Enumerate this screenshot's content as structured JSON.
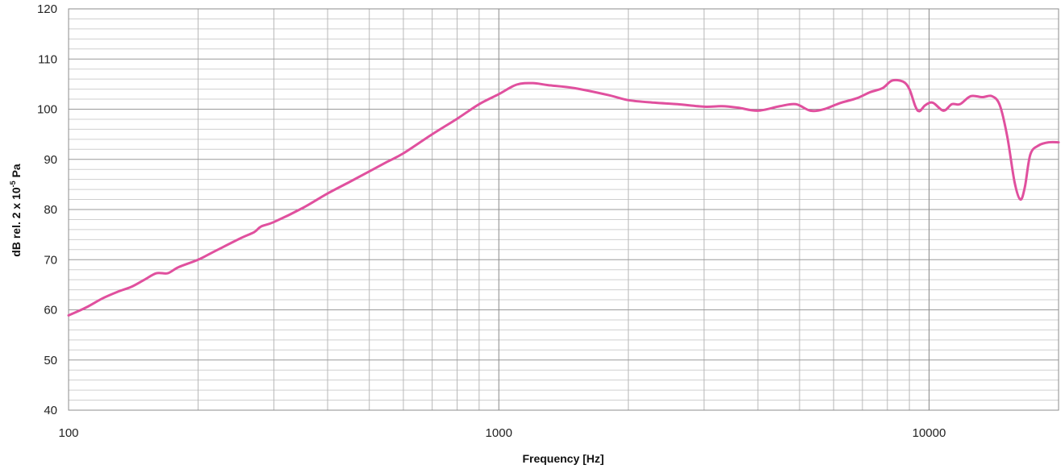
{
  "chart_data": {
    "type": "line",
    "title": "",
    "xlabel": "Frequency [Hz]",
    "ylabel_main": "dB rel. 2 x 10",
    "ylabel_sup": "-5",
    "ylabel_tail": " Pa",
    "x_scale": "log",
    "xlim": [
      100,
      20000
    ],
    "ylim": [
      40,
      120
    ],
    "x_ticks": [
      100,
      1000,
      10000
    ],
    "x_tick_labels": [
      "100",
      "1000",
      "10000"
    ],
    "y_ticks": [
      40,
      50,
      60,
      70,
      80,
      90,
      100,
      110,
      120
    ],
    "y_tick_labels": [
      "40",
      "50",
      "60",
      "70",
      "80",
      "90",
      "100",
      "110",
      "120"
    ],
    "grid": true,
    "legend": "none",
    "series": [
      {
        "color": "#e0509e",
        "x": [
          100,
          110,
          120,
          130,
          140,
          150,
          160,
          170,
          180,
          200,
          220,
          250,
          270,
          280,
          300,
          350,
          400,
          450,
          500,
          550,
          600,
          700,
          800,
          900,
          1000,
          1100,
          1200,
          1300,
          1500,
          1800,
          2000,
          2300,
          2600,
          3000,
          3300,
          3600,
          4000,
          4500,
          4900,
          5300,
          5700,
          6200,
          6800,
          7300,
          7800,
          8200,
          8700,
          9000,
          9300,
          9500,
          9800,
          10200,
          10800,
          11300,
          11800,
          12500,
          13300,
          14000,
          14600,
          15200,
          15800,
          16300,
          16700,
          17200,
          18000,
          19000,
          20000
        ],
        "y": [
          58.9,
          60.5,
          62.3,
          63.6,
          64.6,
          66.0,
          67.3,
          67.3,
          68.5,
          70.0,
          71.8,
          74.2,
          75.5,
          76.6,
          77.5,
          80.3,
          83.2,
          85.5,
          87.6,
          89.5,
          91.2,
          95.0,
          98.1,
          101.0,
          103.0,
          104.9,
          105.2,
          104.8,
          104.2,
          102.8,
          101.8,
          101.3,
          101.0,
          100.5,
          100.6,
          100.3,
          99.7,
          100.6,
          101.0,
          99.7,
          100.0,
          101.2,
          102.2,
          103.4,
          104.2,
          105.7,
          105.5,
          104.0,
          100.5,
          99.6,
          100.8,
          101.3,
          99.7,
          101.0,
          101.0,
          102.6,
          102.4,
          102.6,
          100.8,
          94.5,
          85.5,
          82.0,
          84.5,
          91.0,
          92.8,
          93.4,
          93.4
        ]
      }
    ]
  }
}
